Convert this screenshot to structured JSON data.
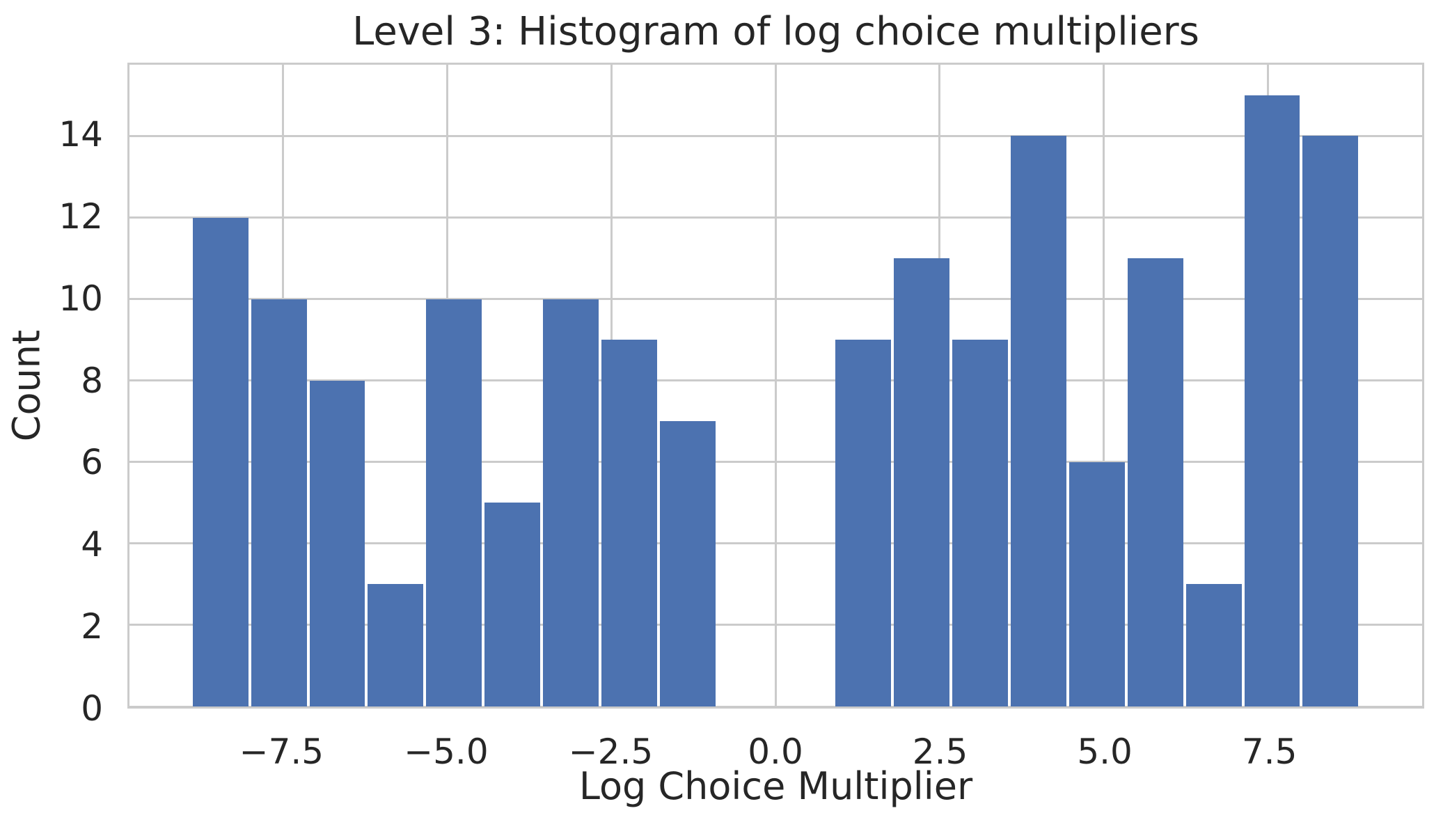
{
  "chart_data": {
    "type": "bar",
    "subtype": "histogram",
    "title": "Level 3: Histogram of log choice multipliers",
    "xlabel": "Log Choice Multiplier",
    "ylabel": "Count",
    "bins": {
      "start": -8.9,
      "width": 0.89,
      "count": 20
    },
    "counts": [
      12,
      10,
      8,
      3,
      10,
      5,
      10,
      9,
      7,
      0,
      0,
      9,
      11,
      9,
      14,
      6,
      11,
      3,
      15,
      14
    ],
    "xlim": [
      -9.84,
      9.85
    ],
    "ylim": [
      0,
      15.75
    ],
    "xticks": [
      -7.5,
      -5.0,
      -2.5,
      0.0,
      2.5,
      5.0,
      7.5
    ],
    "xtick_labels": [
      "−7.5",
      "−5.0",
      "−2.5",
      "0.0",
      "2.5",
      "5.0",
      "7.5"
    ],
    "yticks": [
      0,
      2,
      4,
      6,
      8,
      10,
      12,
      14
    ],
    "ytick_labels": [
      "0",
      "2",
      "4",
      "6",
      "8",
      "10",
      "12",
      "14"
    ],
    "grid": "both",
    "legend": "none",
    "colors": {
      "bar": "#4C72B0",
      "grid": "#cbcbcb",
      "spine": "#cbcbcb",
      "text": "#262626",
      "background": "#ffffff"
    }
  }
}
